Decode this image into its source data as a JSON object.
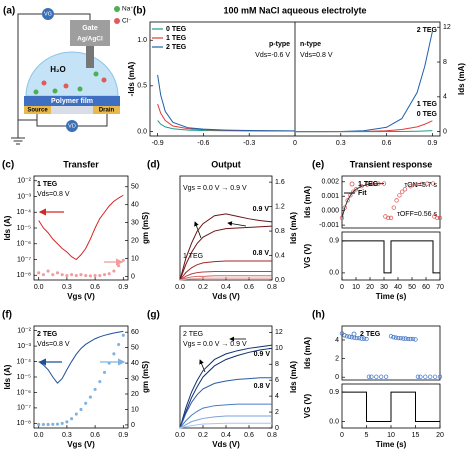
{
  "diagram": {
    "panel_label": "(a)",
    "labels": {
      "vg": "VG",
      "gate": "Gate",
      "electrode": "Ag/AgCl",
      "na": "Na⁺",
      "cl": "Cl⁻",
      "water": "H₂O",
      "film": "Polymer film",
      "source": "Source",
      "drain": "Drain",
      "vd": "VD"
    }
  },
  "chart_data": [
    {
      "type": "line",
      "panel_label": "(b)",
      "title": "100 mM NaCl aqueous electrolyte",
      "ylabel": "-Ids (mA)",
      "y2label": "Ids (mA)",
      "xlim": [
        -0.95,
        0.95
      ],
      "xticks": [
        -0.9,
        -0.6,
        -0.3,
        0,
        0.3,
        0.6,
        0.9
      ],
      "ylim": [
        -0.05,
        1.2
      ],
      "yticks": [
        {
          "value": 0,
          "label": "0.0"
        },
        0.5,
        {
          "value": 1,
          "label": "1.0"
        }
      ],
      "y2lim": [
        -0.5,
        12.6
      ],
      "y2ticks": [
        0,
        4,
        8,
        12
      ],
      "vline": 0,
      "legend": "upper left",
      "annotations": [
        "p-type",
        "Vds=-0.6 V",
        "n-type",
        "Vds=0.8 V"
      ],
      "series": [
        {
          "name": "0 TEG",
          "color": "#1a9e8f",
          "x": [
            -0.9,
            -0.88,
            -0.85,
            -0.8,
            -0.7,
            -0.6,
            -0.45,
            -0.3,
            -0.15,
            0
          ],
          "values": [
            0.12,
            0.08,
            0.05,
            0.03,
            0.015,
            0.01,
            0.008,
            0.006,
            0.005,
            0.005
          ]
        },
        {
          "name": "1 TEG",
          "color": "#e03c3c",
          "x": [
            -0.9,
            -0.88,
            -0.85,
            -0.8,
            -0.7,
            -0.6,
            -0.45,
            -0.3,
            -0.15,
            0
          ],
          "values": [
            0.3,
            0.2,
            0.12,
            0.06,
            0.03,
            0.02,
            0.012,
            0.008,
            0.006,
            0.005
          ]
        },
        {
          "name": "2 TEG",
          "color": "#1f5fa8",
          "x": [
            -0.9,
            -0.88,
            -0.85,
            -0.8,
            -0.7,
            -0.6,
            -0.45,
            -0.3,
            -0.15,
            0
          ],
          "values": [
            0.62,
            0.4,
            0.22,
            0.1,
            0.04,
            0.025,
            0.015,
            0.01,
            0.008,
            0.006
          ]
        },
        {
          "name": "2 TEG",
          "color": "#1f5fa8",
          "axis": "y2",
          "x": [
            0,
            0.15,
            0.3,
            0.45,
            0.6,
            0.7,
            0.8,
            0.85,
            0.9
          ],
          "values": [
            0,
            0,
            0.02,
            0.1,
            0.5,
            1.5,
            4.5,
            7.5,
            11.5
          ]
        },
        {
          "name": "1 TEG",
          "color": "#e03c3c",
          "axis": "y2",
          "x": [
            0,
            0.15,
            0.3,
            0.45,
            0.6,
            0.7,
            0.8,
            0.85,
            0.9
          ],
          "values": [
            0,
            0,
            0,
            0.02,
            0.1,
            0.25,
            0.55,
            0.85,
            1.25
          ]
        },
        {
          "name": "0 TEG",
          "color": "#1a9e8f",
          "axis": "y2",
          "x": [
            0,
            0.15,
            0.3,
            0.45,
            0.6,
            0.7,
            0.8,
            0.85,
            0.9
          ],
          "values": [
            0,
            0,
            0,
            0,
            0.01,
            0.02,
            0.05,
            0.08,
            0.12
          ]
        }
      ]
    },
    {
      "type": "line",
      "panel_label": "(c)",
      "title": "Transfer",
      "xlabel": "Vgs (V)",
      "ylabel": "Ids (A)",
      "y2label": "gm (mS)",
      "ylog": true,
      "xlim": [
        -0.05,
        0.95
      ],
      "xticks": [
        {
          "value": 0,
          "label": "0.0"
        },
        0.3,
        0.6,
        0.9
      ],
      "ylim": [
        5e-09,
        0.02
      ],
      "yticks": [
        {
          "value": 0.01,
          "label": "10⁻²"
        },
        {
          "value": 0.001,
          "label": "10⁻³"
        },
        {
          "value": 0.0001,
          "label": "10⁻⁴"
        },
        {
          "value": 1e-05,
          "label": "10⁻⁵"
        },
        {
          "value": 1e-06,
          "label": "10⁻⁶"
        },
        {
          "value": 1e-07,
          "label": "10⁻⁷"
        },
        {
          "value": 1e-08,
          "label": "10⁻⁸"
        }
      ],
      "y2lim": [
        -2,
        56
      ],
      "y2ticks": [
        0,
        10,
        20,
        30,
        40,
        50
      ],
      "annotations": [
        "Vds=0.8 V"
      ],
      "x": [
        0,
        0.05,
        0.1,
        0.15,
        0.2,
        0.25,
        0.3,
        0.35,
        0.4,
        0.45,
        0.5,
        0.55,
        0.6,
        0.65,
        0.7,
        0.75,
        0.8,
        0.85,
        0.9
      ],
      "series": [
        {
          "name": "1 TEG",
          "color": "#d62728",
          "style": "line",
          "values": [
            3e-05,
            1e-05,
            5e-06,
            2e-06,
            1e-06,
            5e-07,
            3e-07,
            1.5e-07,
            1e-07,
            2e-07,
            5e-07,
            2e-06,
            1e-05,
            4e-05,
            0.0001,
            0.00025,
            0.0005,
            0.0008,
            0.0012
          ]
        },
        {
          "color": "#f29b9b",
          "style": "markers",
          "marker": "filled",
          "axis": "y2",
          "values": [
            2,
            1,
            3,
            1,
            2,
            1,
            0.5,
            1,
            0.5,
            1,
            0.5,
            0.3,
            0.5,
            0.5,
            1,
            1.5,
            3,
            6,
            9
          ]
        }
      ]
    },
    {
      "type": "line",
      "panel_label": "(d)",
      "title": "Output",
      "xlabel": "Vds (V)",
      "ylabel": "Ids (mA)",
      "yside": "right",
      "xlim": [
        0,
        0.8
      ],
      "xticks": [
        {
          "value": 0,
          "label": "0.0"
        },
        0.2,
        0.4,
        0.6,
        0.8
      ],
      "ylim": [
        0,
        1.7
      ],
      "yticks": [
        {
          "value": 0,
          "label": "0.0"
        },
        0.4,
        0.8,
        1.2,
        1.6
      ],
      "annotations": [
        "1 TEG",
        "Vgs = 0.0 V → 0.9 V"
      ],
      "x": [
        0,
        0.05,
        0.1,
        0.15,
        0.2,
        0.3,
        0.4,
        0.5,
        0.6,
        0.7,
        0.8
      ],
      "series": [
        {
          "name": "0.9 V",
          "color": "#6e1414",
          "values": [
            0,
            0.35,
            0.6,
            0.8,
            0.92,
            1.05,
            1.08,
            1.04,
            1.0,
            0.97,
            0.95
          ]
        },
        {
          "color": "#6e1414",
          "values": [
            0,
            0.25,
            0.45,
            0.6,
            0.7,
            0.8,
            0.84,
            0.85,
            0.86,
            0.87,
            0.88
          ]
        },
        {
          "name": "0.8 V",
          "color": "#9c2a2a",
          "values": [
            0,
            0.12,
            0.2,
            0.25,
            0.28,
            0.3,
            0.31,
            0.31,
            0.31,
            0.31,
            0.31
          ]
        },
        {
          "color": "#b84444",
          "values": [
            0,
            0.06,
            0.1,
            0.12,
            0.13,
            0.14,
            0.14,
            0.14,
            0.14,
            0.14,
            0.14
          ]
        },
        {
          "color": "#cf6a6a",
          "values": [
            0,
            0.03,
            0.05,
            0.06,
            0.06,
            0.07,
            0.07,
            0.07,
            0.07,
            0.07,
            0.07
          ]
        },
        {
          "color": "#e39a9a",
          "values": [
            0,
            0.01,
            0.02,
            0.02,
            0.03,
            0.03,
            0.03,
            0.03,
            0.03,
            0.03,
            0.03
          ]
        }
      ]
    },
    {
      "type": "line",
      "panel_label": "(e)",
      "title": "Transient response",
      "ylabel": "Ids (mA)",
      "xlim": [
        0,
        70
      ],
      "ylim": [
        -0.0012,
        0.0024
      ],
      "yticks": [
        -0.001,
        {
          "value": 0,
          "label": "0.000"
        },
        0.001,
        0.002
      ],
      "annotations": [
        "τON=5.7 s",
        "τOFF=0.56 s"
      ],
      "series": [
        {
          "name": "1 TEG",
          "color": "#e05050",
          "style": "markers",
          "marker": "open",
          "x": [
            0,
            2,
            4,
            6,
            8,
            10,
            14,
            18,
            22,
            26,
            30,
            31,
            33,
            35,
            37,
            39,
            41,
            43,
            45,
            49,
            53,
            57,
            61,
            65,
            66,
            68,
            70
          ],
          "values": [
            -0.0005,
            0.00021,
            0.00071,
            0.00106,
            0.00131,
            0.00148,
            0.00169,
            0.0018,
            0.00185,
            0.00187,
            0.00188,
            -0.0004,
            -0.0005,
            -0.0005,
            0.00021,
            0.00071,
            0.00106,
            0.00131,
            0.00148,
            0.00169,
            0.0018,
            0.00185,
            0.00187,
            0.00188,
            -0.0004,
            -0.0005,
            -0.0005
          ]
        },
        {
          "name": "Fit",
          "color": "#333333",
          "style": "line",
          "x": [
            0,
            2,
            4,
            6,
            8,
            10,
            14,
            18,
            22,
            26,
            30
          ],
          "values": [
            -0.0005,
            0.00021,
            0.00071,
            0.00106,
            0.00131,
            0.00148,
            0.00169,
            0.0018,
            0.00185,
            0.00187,
            0.00188
          ]
        }
      ]
    },
    {
      "type": "line",
      "xlabel": "Time (s)",
      "ylabel": "VG (V)",
      "xlim": [
        0,
        70
      ],
      "xticks": [
        0,
        10,
        20,
        30,
        40,
        50,
        60,
        70
      ],
      "ylim": [
        -0.2,
        1.15
      ],
      "yticks": [
        {
          "value": 0,
          "label": "0.0"
        },
        0.9
      ],
      "series": [
        {
          "color": "#000000",
          "x": [
            0,
            30,
            30,
            35,
            35,
            65,
            65,
            70
          ],
          "values": [
            0.9,
            0.9,
            0,
            0,
            0.9,
            0.9,
            0,
            0
          ]
        }
      ]
    },
    {
      "type": "line",
      "panel_label": "(f)",
      "xlabel": "Vgs (V)",
      "ylabel": "Ids (A)",
      "y2label": "gm (mS)",
      "ylog": true,
      "xlim": [
        -0.05,
        0.95
      ],
      "xticks": [
        {
          "value": 0,
          "label": "0.0"
        },
        0.3,
        0.6,
        0.9
      ],
      "ylim": [
        5e-09,
        0.02
      ],
      "yticks": [
        {
          "value": 0.01,
          "label": "10⁻²"
        },
        {
          "value": 0.001,
          "label": "10⁻³"
        },
        {
          "value": 0.0001,
          "label": "10⁻⁴"
        },
        {
          "value": 1e-05,
          "label": "10⁻⁵"
        },
        {
          "value": 1e-06,
          "label": "10⁻⁶"
        },
        {
          "value": 1e-07,
          "label": "10⁻⁷"
        },
        {
          "value": 1e-08,
          "label": "10⁻⁸"
        }
      ],
      "y2lim": [
        -2,
        64
      ],
      "y2ticks": [
        0,
        10,
        20,
        30,
        40,
        50,
        60
      ],
      "annotations": [
        "Vds=0.8 V"
      ],
      "x": [
        0,
        0.05,
        0.1,
        0.15,
        0.2,
        0.25,
        0.3,
        0.35,
        0.4,
        0.45,
        0.5,
        0.55,
        0.6,
        0.65,
        0.7,
        0.75,
        0.8,
        0.85,
        0.9
      ],
      "series": [
        {
          "name": "2 TEG",
          "color": "#1f4e9a",
          "style": "line",
          "values": [
            0.0001,
            6e-05,
            3e-05,
            1e-05,
            4e-06,
            8e-06,
            3e-05,
            0.0001,
            0.0003,
            0.0007,
            0.0013,
            0.002,
            0.003,
            0.004,
            0.005,
            0.006,
            0.007,
            0.008,
            0.009
          ]
        },
        {
          "color": "#7fb2e0",
          "style": "markers",
          "marker": "filled",
          "axis": "y2",
          "values": [
            0.3,
            0.3,
            0.3,
            0.4,
            0.5,
            1,
            2,
            4,
            7,
            10,
            14,
            18,
            23,
            28,
            34,
            40,
            46,
            52,
            58
          ]
        }
      ]
    },
    {
      "type": "line",
      "panel_label": "(g)",
      "xlabel": "Vds (V)",
      "ylabel": "Ids (mA)",
      "yside": "right",
      "xlim": [
        0,
        0.8
      ],
      "xticks": [
        {
          "value": 0,
          "label": "0.0"
        },
        0.2,
        0.4,
        0.6,
        0.8
      ],
      "ylim": [
        0,
        12.8
      ],
      "yticks": [
        0,
        2,
        4,
        6,
        8,
        10,
        12
      ],
      "annotations": [
        "2 TEG",
        "Vgs = 0.0 V → 0.9 V"
      ],
      "x": [
        0,
        0.05,
        0.1,
        0.15,
        0.2,
        0.3,
        0.4,
        0.5,
        0.6,
        0.7,
        0.8
      ],
      "series": [
        {
          "name": "0.9 V",
          "color": "#10306e",
          "values": [
            0,
            2.5,
            4.5,
            6,
            7.2,
            8.6,
            9.3,
            9.7,
            10,
            10.2,
            10.4
          ]
        },
        {
          "color": "#10306e",
          "values": [
            0,
            2,
            3.8,
            5.2,
            6.4,
            7.8,
            8.6,
            9.1,
            9.5,
            9.8,
            10
          ]
        },
        {
          "name": "0.8 V",
          "color": "#2a5aa8",
          "values": [
            0,
            1.8,
            3.2,
            4.2,
            4.9,
            5.6,
            5.9,
            6.1,
            6.2,
            6.3,
            6.3
          ]
        },
        {
          "color": "#4a7cc4",
          "values": [
            0,
            0.9,
            1.6,
            2.1,
            2.5,
            2.8,
            2.9,
            3,
            3,
            3,
            3
          ]
        },
        {
          "color": "#7aa3d8",
          "values": [
            0,
            0.4,
            0.8,
            1,
            1.2,
            1.4,
            1.5,
            1.5,
            1.5,
            1.5,
            1.5
          ]
        },
        {
          "color": "#a9c6ea",
          "values": [
            0,
            0.15,
            0.3,
            0.4,
            0.5,
            0.55,
            0.6,
            0.6,
            0.6,
            0.6,
            0.6
          ]
        }
      ]
    },
    {
      "type": "line",
      "panel_label": "(h)",
      "ylabel": "Ids (mA)",
      "xlim": [
        0,
        20
      ],
      "ylim": [
        -0.3,
        5.5
      ],
      "yticks": [
        0,
        2,
        4
      ],
      "series": [
        {
          "name": "2 TEG",
          "color": "#3a6fc4",
          "style": "markers",
          "marker": "open",
          "x": [
            0,
            0.5,
            1,
            1.5,
            2,
            2.5,
            3,
            3.5,
            4,
            4.5,
            5,
            5.5,
            6,
            7,
            8,
            9,
            10,
            10.5,
            11,
            11.5,
            12,
            12.5,
            13,
            13.5,
            14,
            14.5,
            15,
            15.5,
            16,
            17,
            18,
            19,
            20
          ],
          "values": [
            4.7,
            4.5,
            4.4,
            4.35,
            4.3,
            4.25,
            4.2,
            4.2,
            4.15,
            4.15,
            4.1,
            0.05,
            0.05,
            0.05,
            0.05,
            0.05,
            4.4,
            4.3,
            4.25,
            4.2,
            4.2,
            4.15,
            4.15,
            4.1,
            4.1,
            4.1,
            4.05,
            0.05,
            0.05,
            0.05,
            0.05,
            0.05,
            0.05
          ]
        }
      ]
    },
    {
      "type": "line",
      "xlabel": "Time (s)",
      "ylabel": "VG (V)",
      "xlim": [
        0,
        20
      ],
      "xticks": [
        0,
        5,
        10,
        15,
        20
      ],
      "ylim": [
        -0.2,
        1.15
      ],
      "yticks": [
        {
          "value": 0,
          "label": "0.0"
        },
        0.9
      ],
      "series": [
        {
          "color": "#000000",
          "x": [
            0,
            5,
            5,
            10,
            10,
            15,
            15,
            20
          ],
          "values": [
            0.9,
            0.9,
            0,
            0,
            0.9,
            0.9,
            0,
            0
          ]
        }
      ]
    }
  ]
}
